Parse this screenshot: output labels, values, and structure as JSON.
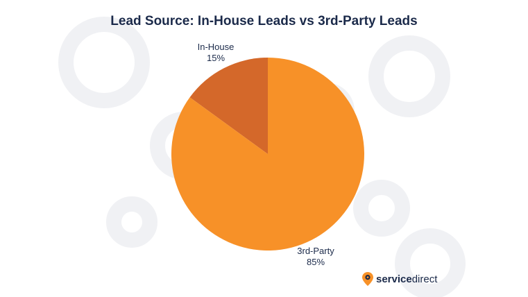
{
  "chart_data": {
    "type": "pie",
    "title": "Lead Source: In-House Leads vs 3rd-Party Leads",
    "slices": [
      {
        "label": "In-House",
        "percent_label": "15%",
        "value": 15,
        "color": "#d4682a"
      },
      {
        "label": "3rd-Party",
        "percent_label": "85%",
        "value": 85,
        "color": "#f79128"
      }
    ]
  },
  "logo": {
    "part1": "service",
    "part2": "direct",
    "icon": "location-pin-gear-icon"
  },
  "colors": {
    "title": "#1b2a4a",
    "background_gear": "#f1f2f5"
  }
}
